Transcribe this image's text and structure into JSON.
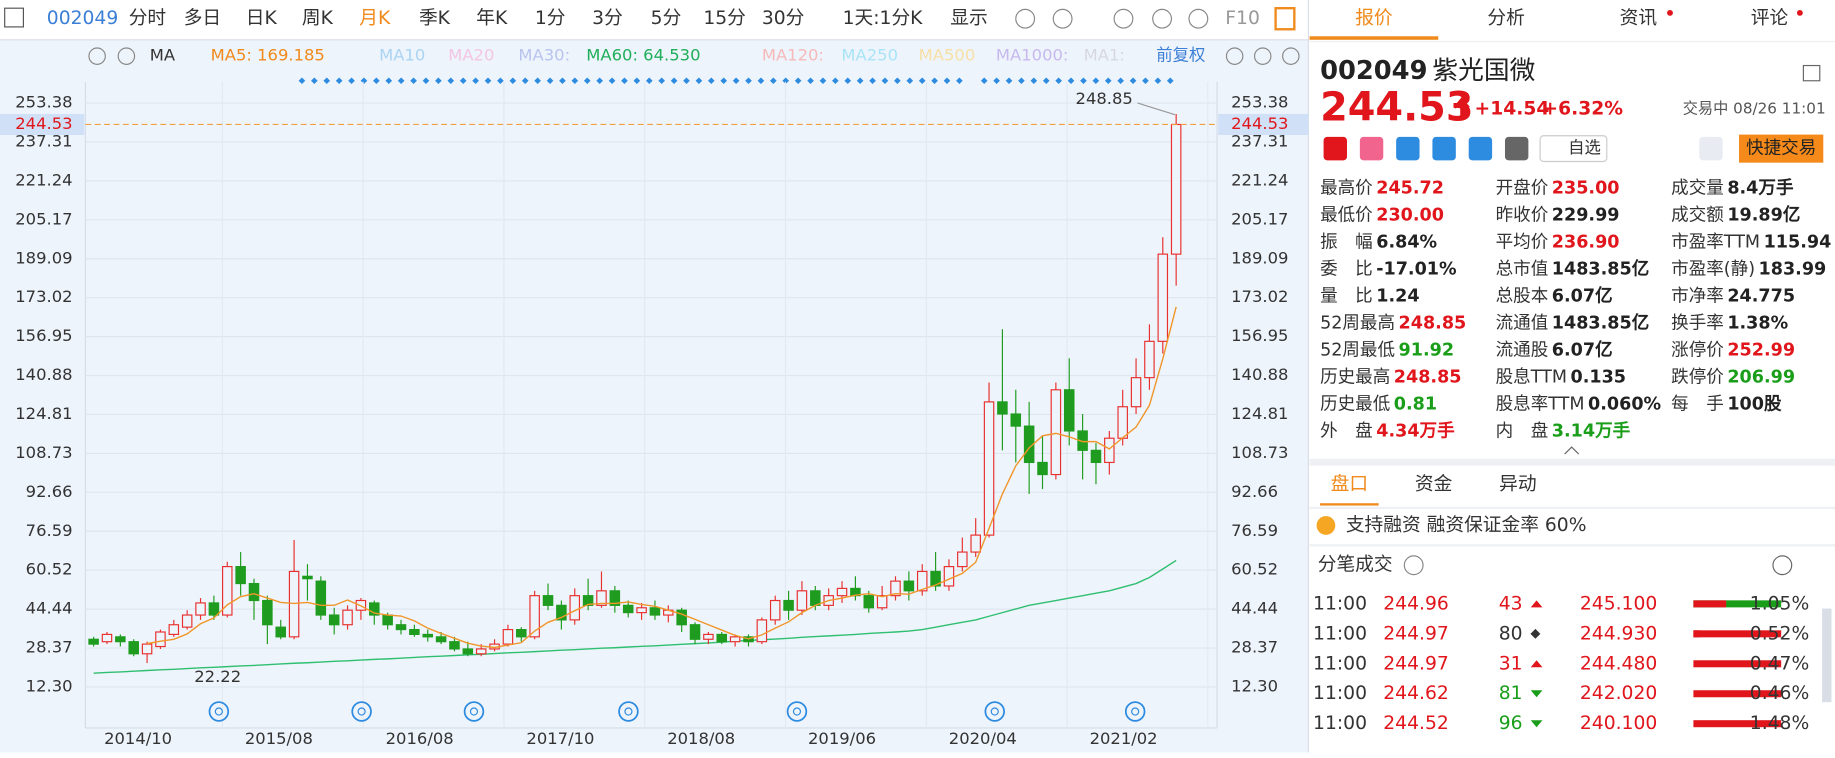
{
  "toolbar": {
    "code": "002049",
    "items": [
      "分时",
      "多日",
      "日K",
      "周K",
      "月K",
      "季K",
      "年K",
      "1分",
      "3分",
      "5分",
      "15分",
      "30分"
    ],
    "active": 4,
    "period": "1天:1分K",
    "display": "显示",
    "f10": "F10"
  },
  "ma_bar": {
    "label": "MA",
    "items": [
      {
        "text": "MA5: 169.185",
        "color": "#f08a1c"
      },
      {
        "text": "MA10",
        "color": "#a9d4f2"
      },
      {
        "text": "MA20",
        "color": "#f2c6e4"
      },
      {
        "text": "MA30:",
        "color": "#b8c4ee"
      },
      {
        "text": "MA60: 64.530",
        "color": "#1fae5a"
      },
      {
        "text": "MA120:",
        "color": "#f5b9b9"
      },
      {
        "text": "MA250",
        "color": "#a9e4f6"
      },
      {
        "text": "MA500",
        "color": "#f7dfa6"
      },
      {
        "text": "MA1000:",
        "color": "#c7b9ee"
      },
      {
        "text": "MA1:",
        "color": "#d7d7e4"
      }
    ],
    "adjust": "前复权"
  },
  "chart": {
    "type": "candlestick",
    "candles": [
      [
        32,
        30,
        33,
        29
      ],
      [
        31,
        34,
        35,
        30
      ],
      [
        33,
        31,
        34,
        29
      ],
      [
        31,
        26,
        32,
        25
      ],
      [
        26,
        30,
        31,
        22.22
      ],
      [
        29,
        35,
        36,
        28
      ],
      [
        34,
        38,
        40,
        33
      ],
      [
        37,
        42,
        44,
        36
      ],
      [
        42,
        47,
        49,
        40
      ],
      [
        47,
        42,
        50,
        40
      ],
      [
        42,
        62,
        64,
        41
      ],
      [
        62,
        55,
        68,
        50
      ],
      [
        55,
        48,
        57,
        40
      ],
      [
        48,
        38,
        50,
        30
      ],
      [
        37,
        33,
        40,
        32
      ],
      [
        33,
        60,
        73,
        32
      ],
      [
        58,
        57,
        63,
        48
      ],
      [
        56,
        42,
        58,
        40
      ],
      [
        42,
        38,
        45,
        34
      ],
      [
        38,
        44,
        46,
        36
      ],
      [
        44,
        48,
        49,
        40
      ],
      [
        47,
        42,
        48,
        38
      ],
      [
        42,
        38,
        43,
        36
      ],
      [
        38,
        36,
        40,
        34
      ],
      [
        36,
        34,
        38,
        33
      ],
      [
        34,
        33,
        36,
        31
      ],
      [
        33,
        31,
        35,
        30
      ],
      [
        31,
        28,
        33,
        27
      ],
      [
        28,
        26,
        31,
        25
      ],
      [
        26,
        28,
        30,
        25
      ],
      [
        28,
        30,
        32,
        27
      ],
      [
        30,
        36,
        38,
        29
      ],
      [
        36,
        33,
        37,
        31
      ],
      [
        33,
        50,
        52,
        32
      ],
      [
        50,
        46,
        55,
        44
      ],
      [
        46,
        40,
        48,
        36
      ],
      [
        40,
        50,
        53,
        38
      ],
      [
        50,
        46,
        57,
        44
      ],
      [
        46,
        52,
        60,
        45
      ],
      [
        52,
        46,
        54,
        43
      ],
      [
        46,
        43,
        48,
        41
      ],
      [
        43,
        45,
        47,
        40
      ],
      [
        45,
        42,
        48,
        40
      ],
      [
        42,
        44,
        46,
        39
      ],
      [
        44,
        38,
        45,
        35
      ],
      [
        38,
        32,
        39,
        30
      ],
      [
        32,
        34,
        35,
        30
      ],
      [
        34,
        31,
        35,
        30
      ],
      [
        31,
        33,
        34,
        29
      ],
      [
        33,
        31,
        34,
        29
      ],
      [
        31,
        40,
        41,
        30
      ],
      [
        40,
        48,
        50,
        38
      ],
      [
        48,
        44,
        52,
        40
      ],
      [
        44,
        52,
        56,
        42
      ],
      [
        52,
        46,
        54,
        44
      ],
      [
        46,
        50,
        53,
        44
      ],
      [
        50,
        53,
        56,
        47
      ],
      [
        53,
        50,
        58,
        48
      ],
      [
        50,
        45,
        52,
        43
      ],
      [
        45,
        50,
        54,
        44
      ],
      [
        50,
        56,
        58,
        48
      ],
      [
        56,
        52,
        60,
        48
      ],
      [
        52,
        60,
        63,
        50
      ],
      [
        60,
        54,
        68,
        52
      ],
      [
        54,
        62,
        65,
        52
      ],
      [
        62,
        68,
        74,
        60
      ],
      [
        68,
        75,
        82,
        66
      ],
      [
        75,
        130,
        138,
        74
      ],
      [
        130,
        125,
        160,
        110
      ],
      [
        125,
        120,
        135,
        105
      ],
      [
        120,
        105,
        130,
        92
      ],
      [
        105,
        100,
        116,
        94
      ],
      [
        100,
        135,
        138,
        98
      ],
      [
        135,
        118,
        148,
        112
      ],
      [
        118,
        110,
        125,
        98
      ],
      [
        110,
        105,
        113,
        96
      ],
      [
        105,
        115,
        118,
        100
      ],
      [
        115,
        128,
        135,
        112
      ],
      [
        128,
        140,
        148,
        125
      ],
      [
        140,
        155,
        162,
        135
      ],
      [
        155,
        191,
        198,
        150
      ],
      [
        191,
        244.53,
        248.85,
        178
      ]
    ],
    "ma5": [
      null,
      null,
      null,
      null,
      30.2,
      31.2,
      32,
      34.2,
      38.4,
      40.8,
      46.2,
      49.6,
      50.8,
      49,
      47.2,
      46.8,
      47.2,
      46,
      46,
      48.2,
      45.8,
      42.8,
      42,
      41.6,
      39.6,
      36.6,
      34.4,
      32.4,
      30.4,
      29.2,
      28.6,
      29.6,
      30.6,
      35.4,
      39,
      41,
      43.8,
      46.4,
      46.8,
      46.8,
      47.4,
      46.4,
      45.6,
      44,
      42.4,
      40.2,
      38,
      35.8,
      33.6,
      32.2,
      33.8,
      36.6,
      39.2,
      43,
      46,
      48,
      49,
      50.2,
      50.8,
      49.6,
      50.8,
      50.6,
      52.6,
      54.4,
      56.8,
      59.2,
      63.8,
      77.8,
      92,
      103.6,
      111,
      116,
      117,
      115.6,
      113.6,
      113.6,
      110.6,
      115.2,
      119.6,
      128.6,
      147.8,
      169.185
    ],
    "ma60": [
      18,
      18.3,
      18.5,
      18.8,
      19.1,
      19.4,
      19.6,
      19.9,
      20.2,
      20.4,
      20.7,
      21,
      21.2,
      21.5,
      21.8,
      22.1,
      22.3,
      22.6,
      22.9,
      23.1,
      23.4,
      23.7,
      23.9,
      24.2,
      24.5,
      24.8,
      25,
      25.3,
      25.6,
      25.8,
      26.1,
      26.4,
      26.6,
      26.9,
      27.2,
      27.5,
      27.7,
      28,
      28.3,
      28.5,
      28.8,
      29.1,
      29.3,
      29.6,
      29.9,
      30.2,
      30.5,
      30.8,
      31.2,
      31.5,
      31.8,
      32.1,
      32.4,
      32.8,
      33.1,
      33.4,
      33.7,
      34,
      34.4,
      34.7,
      35,
      35.4,
      36,
      37,
      38,
      39,
      40,
      41.5,
      43,
      44.5,
      46,
      47,
      48,
      49,
      50,
      51,
      52,
      53.5,
      55,
      57.5,
      61,
      64.53
    ],
    "ylim": [
      -4.6,
      262.1
    ],
    "yticks": [
      253.38,
      237.31,
      221.24,
      205.17,
      189.09,
      173.02,
      156.95,
      140.88,
      124.81,
      108.73,
      92.66,
      76.59,
      60.52,
      44.44,
      28.37,
      {
        "value": 12.3,
        "label": "12.30"
      }
    ],
    "x_labels": [
      "2014/10",
      "2015/08",
      "2016/08",
      "2017/10",
      "2018/08",
      "2019/06",
      "2020/04",
      "2021/02"
    ],
    "current": 244.53,
    "high_annotation": 248.85,
    "low_annotation": 22.22,
    "up_color": "#e8302e",
    "down_color": "#1f9c1f",
    "ma5_color": "#f0962a",
    "ma60_color": "#2fbf70",
    "grid": true
  },
  "tabs": [
    "报价",
    "分析",
    "资讯",
    "评论"
  ],
  "active_tab": 0,
  "quote": {
    "code": "002049",
    "name": "紫光国微",
    "price": "244.53",
    "change": "+14.54",
    "pct": "+6.32%",
    "status": "交易中 08/26 11:01"
  },
  "actions": [
    "自选",
    "快捷交易"
  ],
  "stats": [
    [
      {
        "label": "最高价",
        "value": "245.72",
        "color": "#e0161c"
      },
      {
        "label": "开盘价",
        "value": "235.00",
        "color": "#e0161c"
      },
      {
        "label": "成交量",
        "value": "8.4万手",
        "color": "#222"
      }
    ],
    [
      {
        "label": "最低价",
        "value": "230.00",
        "color": "#e0161c"
      },
      {
        "label": "昨收价",
        "value": "229.99",
        "color": "#222"
      },
      {
        "label": "成交额",
        "value": "19.89亿",
        "color": "#222"
      }
    ],
    [
      {
        "label": "振　幅",
        "value": "6.84%",
        "color": "#222"
      },
      {
        "label": "平均价",
        "value": "236.90",
        "color": "#e0161c"
      },
      {
        "label": "市盈率TTM",
        "value": "115.94",
        "color": "#222"
      }
    ],
    [
      {
        "label": "委　比",
        "value": "-17.01%",
        "color": "#222"
      },
      {
        "label": "总市值",
        "value": "1483.85亿",
        "color": "#222"
      },
      {
        "label": "市盈率(静)",
        "value": "183.99",
        "color": "#222"
      }
    ],
    [
      {
        "label": "量　比",
        "value": "1.24",
        "color": "#222"
      },
      {
        "label": "总股本",
        "value": "6.07亿",
        "color": "#222"
      },
      {
        "label": "市净率",
        "value": "24.775",
        "color": "#222"
      }
    ],
    [
      {
        "label": "52周最高",
        "value": "248.85",
        "color": "#e0161c"
      },
      {
        "label": "流通值",
        "value": "1483.85亿",
        "color": "#222"
      },
      {
        "label": "换手率",
        "value": "1.38%",
        "color": "#222"
      }
    ],
    [
      {
        "label": "52周最低",
        "value": "91.92",
        "color": "#1a9e1a"
      },
      {
        "label": "流通股",
        "value": "6.07亿",
        "color": "#222"
      },
      {
        "label": "涨停价",
        "value": "252.99",
        "color": "#e0161c"
      }
    ],
    [
      {
        "label": "历史最高",
        "value": "248.85",
        "color": "#e0161c"
      },
      {
        "label": "股息TTM",
        "value": "0.135",
        "color": "#222"
      },
      {
        "label": "跌停价",
        "value": "206.99",
        "color": "#1a9e1a"
      }
    ],
    [
      {
        "label": "历史最低",
        "value": "0.81",
        "color": "#1a9e1a"
      },
      {
        "label": "股息率TTM",
        "value": "0.060%",
        "color": "#222"
      },
      {
        "label": "每　手",
        "value": "100股",
        "color": "#222"
      }
    ],
    [
      {
        "label": "外　盘",
        "value": "4.34万手",
        "color": "#e0161c"
      },
      {
        "label": "内　盘",
        "value": "3.14万手",
        "color": "#1a9e1a"
      }
    ]
  ],
  "sub_tabs": [
    "盘口",
    "资金",
    "异动"
  ],
  "margin": "支持融资 融资保证金率 60%",
  "trades_title": "分笔成交",
  "trades": [
    {
      "time": "11:00",
      "price": "244.96",
      "volume": "43",
      "direction": "up",
      "level": "245.100",
      "pct": "1.05%"
    },
    {
      "time": "11:00",
      "price": "244.97",
      "volume": "80",
      "direction": "neutral",
      "level": "244.930",
      "pct": "0.52%"
    },
    {
      "time": "11:00",
      "price": "244.97",
      "volume": "31",
      "direction": "up",
      "level": "244.480",
      "pct": "0.47%"
    },
    {
      "time": "11:00",
      "price": "244.62",
      "volume": "81",
      "direction": "down",
      "level": "242.020",
      "pct": "0.46%"
    },
    {
      "time": "11:00",
      "price": "244.52",
      "volume": "96",
      "direction": "down",
      "level": "240.100",
      "pct": "1.48%"
    }
  ]
}
